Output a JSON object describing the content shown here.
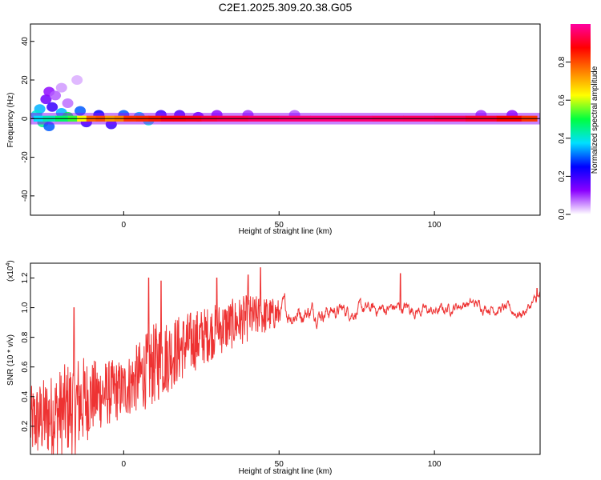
{
  "title": "C2E1.2025.309.20.38.G05",
  "chart_data": [
    {
      "type": "heatmap",
      "xlabel": "Height of straight line (km)",
      "ylabel": "Frequency (Hz)",
      "xlim": [
        -30,
        134
      ],
      "ylim": [
        -50,
        49
      ],
      "xticks": [
        0,
        50,
        100
      ],
      "yticks": [
        -40,
        -20,
        0,
        20,
        40
      ],
      "grid": false,
      "center_line_hz": 0,
      "blobs": [
        {
          "x": -25,
          "y": 10,
          "v": 0.15
        },
        {
          "x": -24,
          "y": 14,
          "v": 0.12
        },
        {
          "x": -23,
          "y": 6,
          "v": 0.2
        },
        {
          "x": -22,
          "y": 12,
          "v": 0.08
        },
        {
          "x": -20,
          "y": 16,
          "v": 0.05
        },
        {
          "x": -18,
          "y": 8,
          "v": 0.07
        },
        {
          "x": -15,
          "y": 20,
          "v": 0.04
        },
        {
          "x": -27,
          "y": 5,
          "v": 0.35
        },
        {
          "x": -28,
          "y": 2,
          "v": 0.4
        },
        {
          "x": -26,
          "y": -2,
          "v": 0.45
        },
        {
          "x": -24,
          "y": -4,
          "v": 0.3
        },
        {
          "x": -20,
          "y": 3,
          "v": 0.35
        },
        {
          "x": -18,
          "y": 1,
          "v": 0.5
        },
        {
          "x": -14,
          "y": 4,
          "v": 0.3
        },
        {
          "x": -12,
          "y": -2,
          "v": 0.2
        },
        {
          "x": -8,
          "y": 2,
          "v": 0.25
        },
        {
          "x": -4,
          "y": -3,
          "v": 0.2
        },
        {
          "x": 0,
          "y": 2,
          "v": 0.3
        },
        {
          "x": 5,
          "y": 1,
          "v": 0.35
        },
        {
          "x": 8,
          "y": -1,
          "v": 0.4
        },
        {
          "x": 12,
          "y": 2,
          "v": 0.2
        },
        {
          "x": 18,
          "y": 2,
          "v": 0.18
        },
        {
          "x": 24,
          "y": 1,
          "v": 0.15
        },
        {
          "x": 30,
          "y": 2,
          "v": 0.12
        },
        {
          "x": 40,
          "y": 2,
          "v": 0.1
        },
        {
          "x": 55,
          "y": 2,
          "v": 0.08
        },
        {
          "x": 115,
          "y": 2,
          "v": 0.1
        },
        {
          "x": 125,
          "y": 2,
          "v": 0.12
        }
      ],
      "line_points": [
        {
          "x": -29,
          "v": 0.35
        },
        {
          "x": -26,
          "v": 0.4
        },
        {
          "x": -22,
          "v": 0.45
        },
        {
          "x": -18,
          "v": 0.5
        },
        {
          "x": -15,
          "v": 0.55
        },
        {
          "x": -12,
          "v": 0.7
        },
        {
          "x": -9,
          "v": 0.85
        },
        {
          "x": -6,
          "v": 0.75
        },
        {
          "x": -3,
          "v": 0.7
        },
        {
          "x": 0,
          "v": 0.8
        },
        {
          "x": 4,
          "v": 0.85
        },
        {
          "x": 8,
          "v": 0.82
        },
        {
          "x": 12,
          "v": 0.88
        },
        {
          "x": 16,
          "v": 0.9
        },
        {
          "x": 20,
          "v": 0.88
        },
        {
          "x": 25,
          "v": 0.92
        },
        {
          "x": 30,
          "v": 0.93
        },
        {
          "x": 40,
          "v": 0.95
        },
        {
          "x": 50,
          "v": 0.96
        },
        {
          "x": 60,
          "v": 0.97
        },
        {
          "x": 70,
          "v": 0.97
        },
        {
          "x": 80,
          "v": 0.96
        },
        {
          "x": 90,
          "v": 0.95
        },
        {
          "x": 100,
          "v": 0.95
        },
        {
          "x": 110,
          "v": 0.93
        },
        {
          "x": 120,
          "v": 0.9
        },
        {
          "x": 128,
          "v": 0.85
        },
        {
          "x": 133,
          "v": 0.8
        }
      ],
      "colorbar": {
        "label": "Normalized spectral amplitude",
        "range": [
          0,
          1
        ],
        "ticks": [
          0.0,
          0.2,
          0.4,
          0.6,
          0.8
        ],
        "tick_labels": [
          "0.0",
          "0.2",
          "0.4",
          "0.6",
          "0.8"
        ],
        "colors": [
          "#ffffff",
          "#8a00ff",
          "#0000ff",
          "#00e0ff",
          "#00ff40",
          "#ffff00",
          "#ff8000",
          "#ff0000",
          "#ff00a0"
        ]
      }
    },
    {
      "type": "line",
      "xlabel": "Height of straight line (km)",
      "ylabel": "SNR (10 * v/v)",
      "y_multiplier_label": "(x10",
      "y_multiplier_exp": "4",
      "xlim": [
        -30,
        134
      ],
      "ylim": [
        0.01,
        1.3
      ],
      "xticks": [
        0,
        50,
        100
      ],
      "yticks": [
        0.2,
        0.4,
        0.6,
        0.8,
        1.0,
        1.2
      ],
      "ytick_labels": [
        "0.2",
        "0.4",
        "0.6",
        "0.8",
        "1.0",
        "1.2"
      ],
      "grid": false,
      "line_color": "#ee3333",
      "trend": [
        {
          "x": -30,
          "y": 0.22,
          "amp": 0.25
        },
        {
          "x": -20,
          "y": 0.3,
          "amp": 0.3
        },
        {
          "x": -15,
          "y": 0.35,
          "amp": 0.35
        },
        {
          "x": -10,
          "y": 0.4,
          "amp": 0.25
        },
        {
          "x": 0,
          "y": 0.45,
          "amp": 0.2
        },
        {
          "x": 10,
          "y": 0.62,
          "amp": 0.28
        },
        {
          "x": 20,
          "y": 0.75,
          "amp": 0.22
        },
        {
          "x": 30,
          "y": 0.85,
          "amp": 0.18
        },
        {
          "x": 40,
          "y": 0.93,
          "amp": 0.16
        },
        {
          "x": 50,
          "y": 0.96,
          "amp": 0.1
        },
        {
          "x": 60,
          "y": 0.98,
          "amp": 0.08
        },
        {
          "x": 75,
          "y": 0.98,
          "amp": 0.06
        },
        {
          "x": 90,
          "y": 1.0,
          "amp": 0.06
        },
        {
          "x": 100,
          "y": 0.97,
          "amp": 0.05
        },
        {
          "x": 110,
          "y": 1.03,
          "amp": 0.05
        },
        {
          "x": 120,
          "y": 1.0,
          "amp": 0.05
        },
        {
          "x": 128,
          "y": 0.96,
          "amp": 0.05
        },
        {
          "x": 134,
          "y": 1.07,
          "amp": 0.05
        }
      ],
      "spikes": [
        {
          "x": -16,
          "y": 1.0
        },
        {
          "x": 8,
          "y": 1.2
        },
        {
          "x": 44,
          "y": 1.27
        },
        {
          "x": 89,
          "y": 1.23
        },
        {
          "x": 12,
          "y": 1.18
        },
        {
          "x": 30,
          "y": 1.2
        },
        {
          "x": 40,
          "y": 1.22
        },
        {
          "x": 133,
          "y": 1.13
        }
      ],
      "samples": 1400
    }
  ]
}
